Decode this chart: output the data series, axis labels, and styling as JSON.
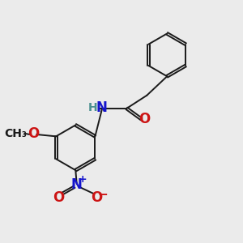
{
  "bg_color": "#ebebeb",
  "bond_color": "#1a1a1a",
  "N_color": "#1414cc",
  "O_color": "#cc1414",
  "H_color": "#4a9090",
  "font_size_atoms": 12,
  "font_size_small": 10,
  "line_width": 1.4,
  "fig_w": 3.0,
  "fig_h": 3.0,
  "dpi": 100,
  "xlim": [
    0,
    10
  ],
  "ylim": [
    0,
    10
  ]
}
